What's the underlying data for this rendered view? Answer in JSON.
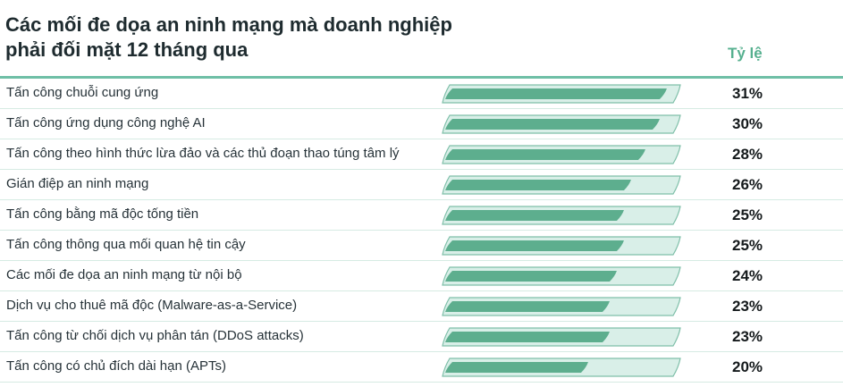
{
  "title_lines": [
    "Các mối đe dọa an ninh mạng mà doanh nghiệp",
    "phải đối mặt 12 tháng qua"
  ],
  "column_header": "Tỷ lệ",
  "colors": {
    "accent": "#56b08f",
    "bar_fill": "#5dae8e",
    "track_fill": "#d9efe8",
    "track_stroke": "#7fbfa9"
  },
  "chart_data": {
    "type": "bar",
    "orientation": "horizontal",
    "title": "Các mối đe dọa an ninh mạng mà doanh nghiệp phải đối mặt 12 tháng qua",
    "xlabel": "",
    "ylabel": "",
    "xlim": [
      0,
      100
    ],
    "grid": false,
    "categories": [
      "Tấn công chuỗi cung ứng",
      "Tấn công ứng dụng công nghệ AI",
      "Tấn công theo hình thức lừa đảo và các thủ đoạn thao túng tâm lý",
      "Gián điệp an ninh mạng",
      "Tấn công bằng mã độc tống tiền",
      "Tấn công thông qua mối quan hệ tin cậy",
      "Các mối đe dọa an ninh mạng từ nội bộ",
      "Dịch vụ cho thuê mã độc (Malware-as-a-Service)",
      "Tấn công từ chối dịch vụ phân tán (DDoS attacks)",
      "Tấn công có chủ đích dài hạn (APTs)"
    ],
    "values": [
      31,
      30,
      28,
      26,
      25,
      25,
      24,
      23,
      23,
      20
    ],
    "value_labels": [
      "31%",
      "30%",
      "28%",
      "26%",
      "25%",
      "25%",
      "24%",
      "23%",
      "23%",
      "20%"
    ]
  }
}
